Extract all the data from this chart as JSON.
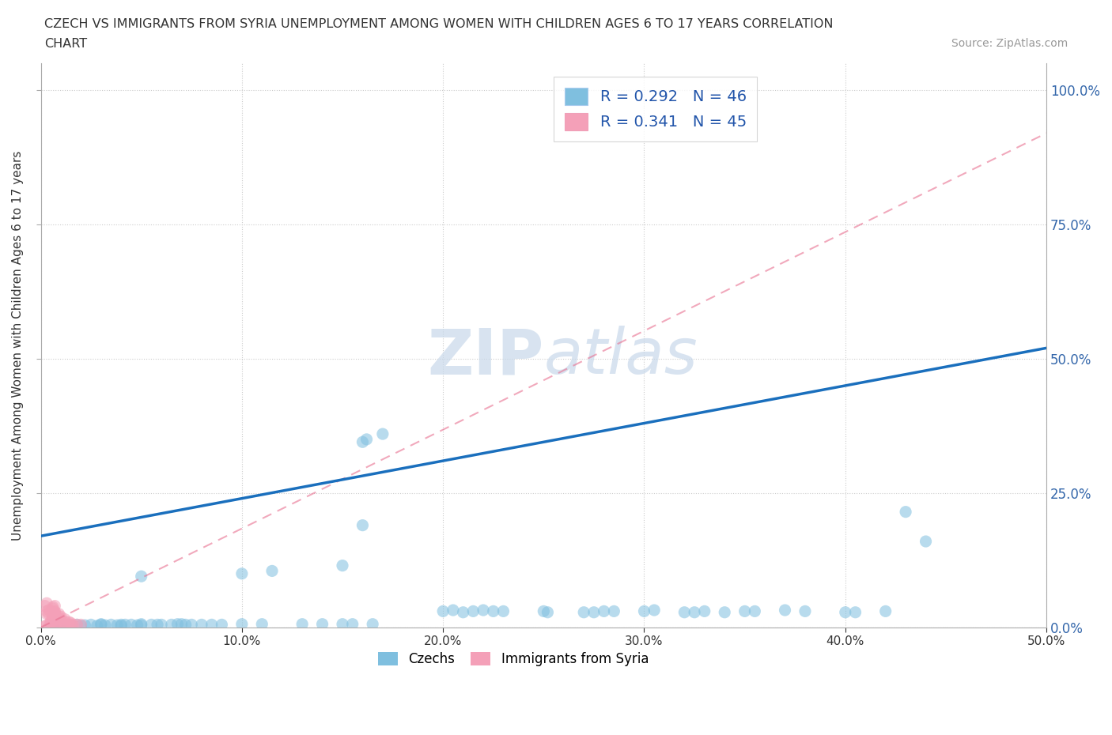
{
  "title_line1": "CZECH VS IMMIGRANTS FROM SYRIA UNEMPLOYMENT AMONG WOMEN WITH CHILDREN AGES 6 TO 17 YEARS CORRELATION",
  "title_line2": "CHART",
  "source_text": "Source: ZipAtlas.com",
  "ylabel": "Unemployment Among Women with Children Ages 6 to 17 years",
  "xlim": [
    0.0,
    0.5
  ],
  "ylim": [
    0.0,
    1.05
  ],
  "yticks": [
    0.0,
    0.25,
    0.5,
    0.75,
    1.0
  ],
  "xticks": [
    0.0,
    0.1,
    0.2,
    0.3,
    0.4,
    0.5
  ],
  "czech_color": "#7fbfdf",
  "syria_color": "#f4a0b8",
  "czech_line_color": "#1a6fbd",
  "syria_line_color": "#e87090",
  "watermark_color": "#c8d8ea",
  "background_color": "#ffffff",
  "grid_color": "#cccccc",
  "right_tick_color": "#3366aa",
  "legend_label_color": "#2255aa",
  "czechs_scatter": [
    [
      0.005,
      0.005
    ],
    [
      0.008,
      0.003
    ],
    [
      0.01,
      0.005
    ],
    [
      0.012,
      0.003
    ],
    [
      0.015,
      0.004
    ],
    [
      0.018,
      0.005
    ],
    [
      0.02,
      0.003
    ],
    [
      0.022,
      0.004
    ],
    [
      0.025,
      0.005
    ],
    [
      0.028,
      0.003
    ],
    [
      0.03,
      0.006
    ],
    [
      0.03,
      0.005
    ],
    [
      0.032,
      0.004
    ],
    [
      0.035,
      0.005
    ],
    [
      0.038,
      0.004
    ],
    [
      0.04,
      0.005
    ],
    [
      0.04,
      0.003
    ],
    [
      0.042,
      0.005
    ],
    [
      0.045,
      0.005
    ],
    [
      0.048,
      0.004
    ],
    [
      0.05,
      0.006
    ],
    [
      0.05,
      0.004
    ],
    [
      0.055,
      0.005
    ],
    [
      0.058,
      0.005
    ],
    [
      0.06,
      0.005
    ],
    [
      0.065,
      0.005
    ],
    [
      0.068,
      0.006
    ],
    [
      0.07,
      0.006
    ],
    [
      0.072,
      0.005
    ],
    [
      0.075,
      0.005
    ],
    [
      0.08,
      0.005
    ],
    [
      0.085,
      0.005
    ],
    [
      0.09,
      0.005
    ],
    [
      0.1,
      0.006
    ],
    [
      0.11,
      0.006
    ],
    [
      0.13,
      0.006
    ],
    [
      0.14,
      0.006
    ],
    [
      0.15,
      0.006
    ],
    [
      0.155,
      0.006
    ],
    [
      0.165,
      0.006
    ],
    [
      0.2,
      0.03
    ],
    [
      0.205,
      0.032
    ],
    [
      0.21,
      0.028
    ],
    [
      0.215,
      0.03
    ],
    [
      0.22,
      0.032
    ],
    [
      0.225,
      0.03
    ],
    [
      0.23,
      0.03
    ],
    [
      0.25,
      0.03
    ],
    [
      0.252,
      0.028
    ],
    [
      0.27,
      0.028
    ],
    [
      0.275,
      0.028
    ],
    [
      0.28,
      0.03
    ],
    [
      0.285,
      0.03
    ],
    [
      0.3,
      0.03
    ],
    [
      0.305,
      0.032
    ],
    [
      0.32,
      0.028
    ],
    [
      0.325,
      0.028
    ],
    [
      0.33,
      0.03
    ],
    [
      0.34,
      0.028
    ],
    [
      0.35,
      0.03
    ],
    [
      0.355,
      0.03
    ],
    [
      0.37,
      0.032
    ],
    [
      0.38,
      0.03
    ],
    [
      0.4,
      0.028
    ],
    [
      0.405,
      0.028
    ],
    [
      0.42,
      0.03
    ],
    [
      0.16,
      0.19
    ],
    [
      0.16,
      0.345
    ],
    [
      0.162,
      0.35
    ],
    [
      0.17,
      0.36
    ],
    [
      0.43,
      0.215
    ],
    [
      0.44,
      0.16
    ],
    [
      0.15,
      0.115
    ],
    [
      0.05,
      0.095
    ],
    [
      0.1,
      0.1
    ],
    [
      0.115,
      0.105
    ]
  ],
  "syria_scatter": [
    [
      0.002,
      0.002
    ],
    [
      0.003,
      0.004
    ],
    [
      0.004,
      0.003
    ],
    [
      0.005,
      0.005
    ],
    [
      0.005,
      0.008
    ],
    [
      0.005,
      0.01
    ],
    [
      0.005,
      0.012
    ],
    [
      0.006,
      0.015
    ],
    [
      0.006,
      0.018
    ],
    [
      0.006,
      0.02
    ],
    [
      0.007,
      0.022
    ],
    [
      0.007,
      0.025
    ],
    [
      0.007,
      0.028
    ],
    [
      0.007,
      0.03
    ],
    [
      0.008,
      0.005
    ],
    [
      0.008,
      0.008
    ],
    [
      0.008,
      0.012
    ],
    [
      0.008,
      0.015
    ],
    [
      0.008,
      0.018
    ],
    [
      0.009,
      0.02
    ],
    [
      0.009,
      0.025
    ],
    [
      0.01,
      0.005
    ],
    [
      0.01,
      0.01
    ],
    [
      0.01,
      0.015
    ],
    [
      0.01,
      0.02
    ],
    [
      0.012,
      0.005
    ],
    [
      0.012,
      0.01
    ],
    [
      0.012,
      0.015
    ],
    [
      0.014,
      0.005
    ],
    [
      0.014,
      0.01
    ],
    [
      0.015,
      0.005
    ],
    [
      0.015,
      0.008
    ],
    [
      0.016,
      0.005
    ],
    [
      0.018,
      0.005
    ],
    [
      0.02,
      0.005
    ],
    [
      0.003,
      0.025
    ],
    [
      0.003,
      0.03
    ],
    [
      0.004,
      0.032
    ],
    [
      0.004,
      0.025
    ],
    [
      0.005,
      0.03
    ],
    [
      0.006,
      0.035
    ],
    [
      0.006,
      0.038
    ],
    [
      0.007,
      0.04
    ],
    [
      0.002,
      0.04
    ],
    [
      0.003,
      0.045
    ]
  ],
  "czech_line": [
    [
      0.0,
      0.17
    ],
    [
      0.5,
      0.52
    ]
  ],
  "syria_line": [
    [
      0.0,
      0.0
    ],
    [
      0.5,
      0.92
    ]
  ],
  "legend_border_color": "#cccccc"
}
